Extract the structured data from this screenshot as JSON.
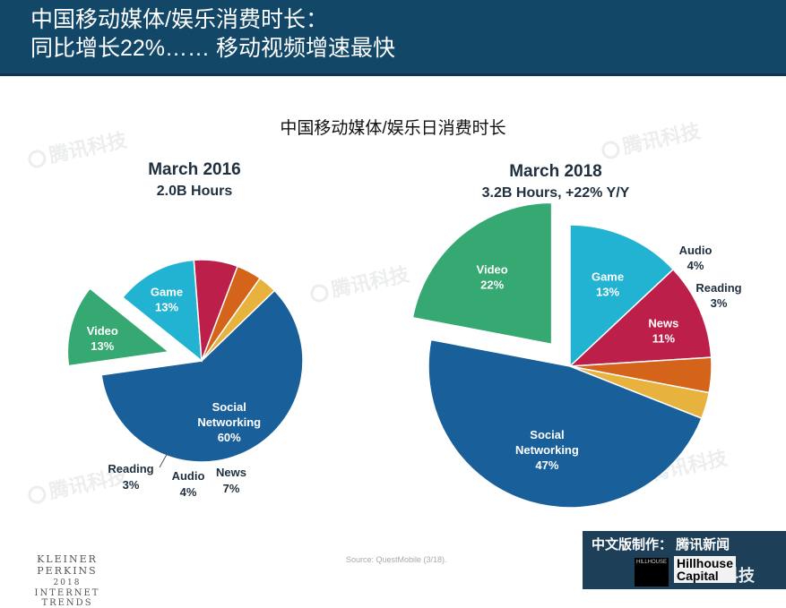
{
  "header": {
    "line1": "中国移动媒体/娱乐消费时长：",
    "line2": "同比增长22%…… 移动视频增速最快"
  },
  "subtitle": "中国移动媒体/娱乐日消费时长",
  "watermark": "腾讯科技",
  "colors": {
    "header_bg": "#124767",
    "social": "#19609a",
    "video": "#36a872",
    "game": "#21b3d1",
    "news": "#bd1f4b",
    "audio": "#d46419",
    "reading": "#e7b23e"
  },
  "chart_data": [
    {
      "type": "pie",
      "title": "March 2016",
      "subtitle": "2.0B Hours",
      "slices": [
        {
          "key": "social",
          "name": "Social Networking",
          "label_lines": [
            "Social",
            "Networking"
          ],
          "value": 60,
          "value_label": "60%"
        },
        {
          "key": "video",
          "name": "Video",
          "label_lines": [
            "Video"
          ],
          "value": 13,
          "value_label": "13%",
          "exploded": true
        },
        {
          "key": "game",
          "name": "Game",
          "label_lines": [
            "Game"
          ],
          "value": 13,
          "value_label": "13%"
        },
        {
          "key": "news",
          "name": "News",
          "label_lines": [
            "News"
          ],
          "value": 7,
          "value_label": "7%"
        },
        {
          "key": "audio",
          "name": "Audio",
          "label_lines": [
            "Audio"
          ],
          "value": 4,
          "value_label": "4%"
        },
        {
          "key": "reading",
          "name": "Reading",
          "label_lines": [
            "Reading"
          ],
          "value": 3,
          "value_label": "3%"
        }
      ]
    },
    {
      "type": "pie",
      "title": "March 2018",
      "subtitle": "3.2B Hours, +22% Y/Y",
      "slices": [
        {
          "key": "game",
          "name": "Game",
          "label_lines": [
            "Game"
          ],
          "value": 13,
          "value_label": "13%"
        },
        {
          "key": "news",
          "name": "News",
          "label_lines": [
            "News"
          ],
          "value": 11,
          "value_label": "11%"
        },
        {
          "key": "audio",
          "name": "Audio",
          "label_lines": [
            "Audio"
          ],
          "value": 4,
          "value_label": "4%"
        },
        {
          "key": "reading",
          "name": "Reading",
          "label_lines": [
            "Reading"
          ],
          "value": 3,
          "value_label": "3%"
        },
        {
          "key": "social",
          "name": "Social Networking",
          "label_lines": [
            "Social",
            "Networking"
          ],
          "value": 47,
          "value_label": "47%"
        },
        {
          "key": "video",
          "name": "Video",
          "label_lines": [
            "Video"
          ],
          "value": 22,
          "value_label": "22%",
          "exploded": true
        }
      ]
    }
  ],
  "footer": {
    "brand_line1": "KLEINER PERKINS",
    "brand_line2": "2018",
    "brand_line3": "INTERNET TRENDS",
    "source": "Source: QuestMobile (3/18).",
    "banner": "中文版制作： 腾讯新闻",
    "hillhouse_box": "HILLHOUSE",
    "hillhouse_text_1": "Hillhouse",
    "hillhouse_text_2": "Capital",
    "brand2": "腾讯科技"
  }
}
